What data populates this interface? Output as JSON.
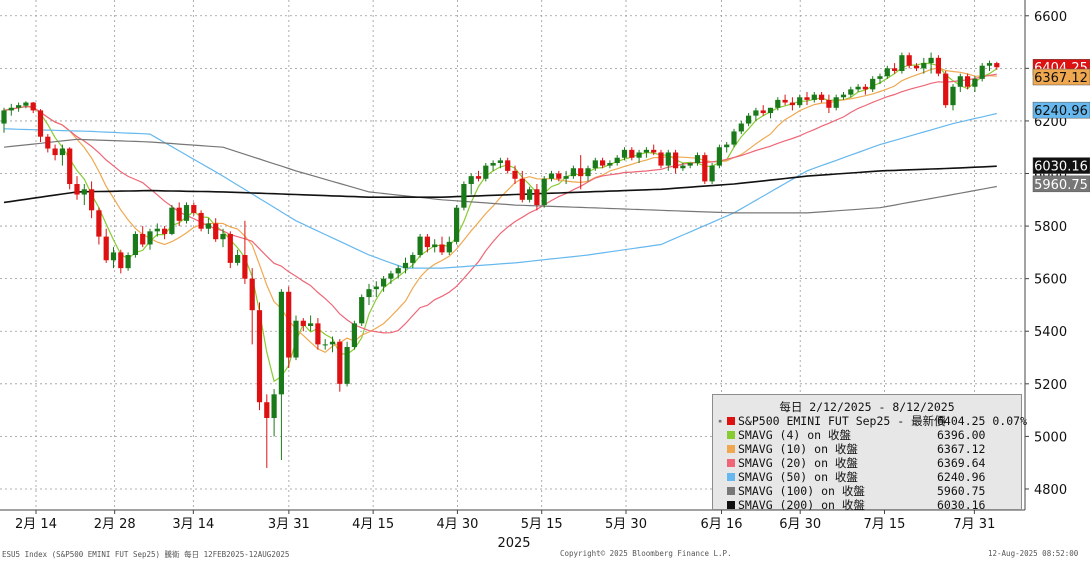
{
  "chart_data": {
    "type": "candlestick",
    "title": "",
    "y_axis": {
      "ticks": [
        4800,
        5000,
        5200,
        5400,
        5600,
        5800,
        6000,
        6200,
        6400,
        6600
      ],
      "range": [
        4720,
        6660
      ],
      "side": "right"
    },
    "x_axis": {
      "ticks": [
        {
          "date": "2025-02-14",
          "label": "2月 14"
        },
        {
          "date": "2025-02-28",
          "label": "2月 28"
        },
        {
          "date": "2025-03-14",
          "label": "3月 14"
        },
        {
          "date": "2025-03-31",
          "label": "3月 31"
        },
        {
          "date": "2025-04-15",
          "label": "4月 15"
        },
        {
          "date": "2025-04-30",
          "label": "4月 30"
        },
        {
          "date": "2025-05-15",
          "label": "5月 15"
        },
        {
          "date": "2025-05-30",
          "label": "5月 30"
        },
        {
          "date": "2025-06-16",
          "label": "6月 16"
        },
        {
          "date": "2025-06-30",
          "label": "6月 30"
        },
        {
          "date": "2025-07-15",
          "label": "7月 15"
        },
        {
          "date": "2025-07-31",
          "label": "7月 31"
        }
      ],
      "year_label": "2025"
    },
    "grid": true,
    "colors": {
      "up": "#1a7a1a",
      "down": "#dd1111"
    },
    "candles": [
      {
        "o": 6190,
        "h": 6250,
        "l": 6155,
        "c": 6240
      },
      {
        "o": 6240,
        "h": 6265,
        "l": 6220,
        "c": 6250
      },
      {
        "o": 6250,
        "h": 6270,
        "l": 6235,
        "c": 6260
      },
      {
        "o": 6258,
        "h": 6275,
        "l": 6248,
        "c": 6270
      },
      {
        "o": 6270,
        "h": 6272,
        "l": 6230,
        "c": 6240
      },
      {
        "o": 6240,
        "h": 6245,
        "l": 6120,
        "c": 6140
      },
      {
        "o": 6140,
        "h": 6150,
        "l": 6080,
        "c": 6095
      },
      {
        "o": 6095,
        "h": 6110,
        "l": 6050,
        "c": 6070
      },
      {
        "o": 6070,
        "h": 6110,
        "l": 6030,
        "c": 6095
      },
      {
        "o": 6095,
        "h": 6100,
        "l": 5940,
        "c": 5960
      },
      {
        "o": 5960,
        "h": 5990,
        "l": 5900,
        "c": 5920
      },
      {
        "o": 5920,
        "h": 5960,
        "l": 5880,
        "c": 5940
      },
      {
        "o": 5940,
        "h": 5970,
        "l": 5830,
        "c": 5860
      },
      {
        "o": 5860,
        "h": 5870,
        "l": 5730,
        "c": 5760
      },
      {
        "o": 5760,
        "h": 5790,
        "l": 5660,
        "c": 5670
      },
      {
        "o": 5670,
        "h": 5720,
        "l": 5640,
        "c": 5700
      },
      {
        "o": 5700,
        "h": 5710,
        "l": 5620,
        "c": 5640
      },
      {
        "o": 5640,
        "h": 5700,
        "l": 5630,
        "c": 5690
      },
      {
        "o": 5690,
        "h": 5780,
        "l": 5680,
        "c": 5770
      },
      {
        "o": 5770,
        "h": 5800,
        "l": 5720,
        "c": 5730
      },
      {
        "o": 5730,
        "h": 5790,
        "l": 5710,
        "c": 5780
      },
      {
        "o": 5780,
        "h": 5810,
        "l": 5760,
        "c": 5790
      },
      {
        "o": 5790,
        "h": 5800,
        "l": 5750,
        "c": 5770
      },
      {
        "o": 5770,
        "h": 5880,
        "l": 5765,
        "c": 5870
      },
      {
        "o": 5870,
        "h": 5890,
        "l": 5800,
        "c": 5820
      },
      {
        "o": 5820,
        "h": 5890,
        "l": 5810,
        "c": 5880
      },
      {
        "o": 5880,
        "h": 5890,
        "l": 5840,
        "c": 5850
      },
      {
        "o": 5850,
        "h": 5860,
        "l": 5780,
        "c": 5790
      },
      {
        "o": 5790,
        "h": 5830,
        "l": 5770,
        "c": 5810
      },
      {
        "o": 5810,
        "h": 5830,
        "l": 5740,
        "c": 5750
      },
      {
        "o": 5750,
        "h": 5790,
        "l": 5720,
        "c": 5770
      },
      {
        "o": 5770,
        "h": 5780,
        "l": 5640,
        "c": 5660
      },
      {
        "o": 5660,
        "h": 5710,
        "l": 5650,
        "c": 5690
      },
      {
        "o": 5690,
        "h": 5820,
        "l": 5580,
        "c": 5600
      },
      {
        "o": 5600,
        "h": 5640,
        "l": 5350,
        "c": 5480
      },
      {
        "o": 5480,
        "h": 5510,
        "l": 5100,
        "c": 5130
      },
      {
        "o": 5130,
        "h": 5160,
        "l": 4880,
        "c": 5070
      },
      {
        "o": 5070,
        "h": 5180,
        "l": 5000,
        "c": 5160
      },
      {
        "o": 5160,
        "h": 5560,
        "l": 4910,
        "c": 5550
      },
      {
        "o": 5550,
        "h": 5570,
        "l": 5260,
        "c": 5300
      },
      {
        "o": 5300,
        "h": 5460,
        "l": 5290,
        "c": 5440
      },
      {
        "o": 5440,
        "h": 5450,
        "l": 5400,
        "c": 5420
      },
      {
        "o": 5420,
        "h": 5460,
        "l": 5400,
        "c": 5430
      },
      {
        "o": 5430,
        "h": 5450,
        "l": 5330,
        "c": 5350
      },
      {
        "o": 5350,
        "h": 5370,
        "l": 5330,
        "c": 5350
      },
      {
        "o": 5350,
        "h": 5380,
        "l": 5320,
        "c": 5360
      },
      {
        "o": 5360,
        "h": 5370,
        "l": 5170,
        "c": 5200
      },
      {
        "o": 5200,
        "h": 5360,
        "l": 5190,
        "c": 5340
      },
      {
        "o": 5340,
        "h": 5440,
        "l": 5330,
        "c": 5430
      },
      {
        "o": 5430,
        "h": 5540,
        "l": 5420,
        "c": 5530
      },
      {
        "o": 5530,
        "h": 5580,
        "l": 5500,
        "c": 5560
      },
      {
        "o": 5560,
        "h": 5590,
        "l": 5530,
        "c": 5570
      },
      {
        "o": 5570,
        "h": 5610,
        "l": 5550,
        "c": 5600
      },
      {
        "o": 5600,
        "h": 5630,
        "l": 5580,
        "c": 5620
      },
      {
        "o": 5620,
        "h": 5650,
        "l": 5600,
        "c": 5640
      },
      {
        "o": 5640,
        "h": 5680,
        "l": 5620,
        "c": 5660
      },
      {
        "o": 5660,
        "h": 5700,
        "l": 5640,
        "c": 5690
      },
      {
        "o": 5690,
        "h": 5770,
        "l": 5680,
        "c": 5760
      },
      {
        "o": 5760,
        "h": 5770,
        "l": 5700,
        "c": 5720
      },
      {
        "o": 5720,
        "h": 5750,
        "l": 5700,
        "c": 5730
      },
      {
        "o": 5730,
        "h": 5760,
        "l": 5690,
        "c": 5700
      },
      {
        "o": 5700,
        "h": 5760,
        "l": 5690,
        "c": 5740
      },
      {
        "o": 5740,
        "h": 5880,
        "l": 5730,
        "c": 5870
      },
      {
        "o": 5870,
        "h": 5970,
        "l": 5860,
        "c": 5960
      },
      {
        "o": 5960,
        "h": 6000,
        "l": 5920,
        "c": 5990
      },
      {
        "o": 5990,
        "h": 6010,
        "l": 5970,
        "c": 5980
      },
      {
        "o": 5980,
        "h": 6040,
        "l": 5970,
        "c": 6030
      },
      {
        "o": 6030,
        "h": 6050,
        "l": 6010,
        "c": 6040
      },
      {
        "o": 6040,
        "h": 6060,
        "l": 6020,
        "c": 6050
      },
      {
        "o": 6050,
        "h": 6060,
        "l": 6000,
        "c": 6010
      },
      {
        "o": 6010,
        "h": 6030,
        "l": 5960,
        "c": 5980
      },
      {
        "o": 5980,
        "h": 6010,
        "l": 5890,
        "c": 5900
      },
      {
        "o": 5900,
        "h": 5950,
        "l": 5890,
        "c": 5940
      },
      {
        "o": 5940,
        "h": 5960,
        "l": 5860,
        "c": 5880
      },
      {
        "o": 5880,
        "h": 5990,
        "l": 5870,
        "c": 5980
      },
      {
        "o": 5980,
        "h": 6010,
        "l": 5970,
        "c": 6000
      },
      {
        "o": 6000,
        "h": 6010,
        "l": 5970,
        "c": 5980
      },
      {
        "o": 5980,
        "h": 6010,
        "l": 5960,
        "c": 5990
      },
      {
        "o": 5990,
        "h": 6030,
        "l": 5980,
        "c": 6020
      },
      {
        "o": 6020,
        "h": 6070,
        "l": 5940,
        "c": 5990
      },
      {
        "o": 5990,
        "h": 6030,
        "l": 5970,
        "c": 6020
      },
      {
        "o": 6020,
        "h": 6060,
        "l": 6010,
        "c": 6050
      },
      {
        "o": 6050,
        "h": 6060,
        "l": 6020,
        "c": 6030
      },
      {
        "o": 6030,
        "h": 6050,
        "l": 6020,
        "c": 6040
      },
      {
        "o": 6040,
        "h": 6070,
        "l": 6030,
        "c": 6060
      },
      {
        "o": 6060,
        "h": 6100,
        "l": 6050,
        "c": 6090
      },
      {
        "o": 6090,
        "h": 6100,
        "l": 6050,
        "c": 6060
      },
      {
        "o": 6060,
        "h": 6090,
        "l": 6040,
        "c": 6080
      },
      {
        "o": 6080,
        "h": 6100,
        "l": 6060,
        "c": 6090
      },
      {
        "o": 6090,
        "h": 6110,
        "l": 6070,
        "c": 6080
      },
      {
        "o": 6080,
        "h": 6090,
        "l": 6020,
        "c": 6030
      },
      {
        "o": 6030,
        "h": 6090,
        "l": 6010,
        "c": 6080
      },
      {
        "o": 6080,
        "h": 6090,
        "l": 6000,
        "c": 6020
      },
      {
        "o": 6020,
        "h": 6040,
        "l": 6010,
        "c": 6030
      },
      {
        "o": 6030,
        "h": 6040,
        "l": 6020,
        "c": 6040
      },
      {
        "o": 6040,
        "h": 6080,
        "l": 6030,
        "c": 6070
      },
      {
        "o": 6070,
        "h": 6080,
        "l": 5960,
        "c": 5970
      },
      {
        "o": 5970,
        "h": 6040,
        "l": 5960,
        "c": 6030
      },
      {
        "o": 6030,
        "h": 6110,
        "l": 6020,
        "c": 6100
      },
      {
        "o": 6100,
        "h": 6120,
        "l": 6080,
        "c": 6110
      },
      {
        "o": 6110,
        "h": 6170,
        "l": 6100,
        "c": 6160
      },
      {
        "o": 6160,
        "h": 6200,
        "l": 6150,
        "c": 6190
      },
      {
        "o": 6190,
        "h": 6230,
        "l": 6180,
        "c": 6220
      },
      {
        "o": 6220,
        "h": 6250,
        "l": 6200,
        "c": 6240
      },
      {
        "o": 6240,
        "h": 6260,
        "l": 6220,
        "c": 6230
      },
      {
        "o": 6230,
        "h": 6250,
        "l": 6210,
        "c": 6250
      },
      {
        "o": 6250,
        "h": 6290,
        "l": 6240,
        "c": 6280
      },
      {
        "o": 6280,
        "h": 6300,
        "l": 6260,
        "c": 6270
      },
      {
        "o": 6270,
        "h": 6290,
        "l": 6240,
        "c": 6260
      },
      {
        "o": 6260,
        "h": 6300,
        "l": 6250,
        "c": 6290
      },
      {
        "o": 6290,
        "h": 6310,
        "l": 6260,
        "c": 6280
      },
      {
        "o": 6280,
        "h": 6310,
        "l": 6270,
        "c": 6300
      },
      {
        "o": 6300,
        "h": 6310,
        "l": 6270,
        "c": 6280
      },
      {
        "o": 6280,
        "h": 6300,
        "l": 6230,
        "c": 6250
      },
      {
        "o": 6250,
        "h": 6300,
        "l": 6240,
        "c": 6290
      },
      {
        "o": 6290,
        "h": 6310,
        "l": 6280,
        "c": 6300
      },
      {
        "o": 6300,
        "h": 6330,
        "l": 6290,
        "c": 6320
      },
      {
        "o": 6320,
        "h": 6340,
        "l": 6310,
        "c": 6330
      },
      {
        "o": 6330,
        "h": 6340,
        "l": 6300,
        "c": 6320
      },
      {
        "o": 6320,
        "h": 6370,
        "l": 6310,
        "c": 6360
      },
      {
        "o": 6360,
        "h": 6380,
        "l": 6340,
        "c": 6370
      },
      {
        "o": 6370,
        "h": 6410,
        "l": 6360,
        "c": 6400
      },
      {
        "o": 6400,
        "h": 6420,
        "l": 6380,
        "c": 6390
      },
      {
        "o": 6390,
        "h": 6460,
        "l": 6380,
        "c": 6450
      },
      {
        "o": 6450,
        "h": 6460,
        "l": 6400,
        "c": 6410
      },
      {
        "o": 6410,
        "h": 6420,
        "l": 6390,
        "c": 6400
      },
      {
        "o": 6400,
        "h": 6440,
        "l": 6380,
        "c": 6420
      },
      {
        "o": 6420,
        "h": 6460,
        "l": 6380,
        "c": 6440
      },
      {
        "o": 6440,
        "h": 6450,
        "l": 6370,
        "c": 6380
      },
      {
        "o": 6380,
        "h": 6390,
        "l": 6250,
        "c": 6260
      },
      {
        "o": 6260,
        "h": 6340,
        "l": 6240,
        "c": 6330
      },
      {
        "o": 6330,
        "h": 6380,
        "l": 6310,
        "c": 6370
      },
      {
        "o": 6370,
        "h": 6380,
        "l": 6320,
        "c": 6330
      },
      {
        "o": 6330,
        "h": 6370,
        "l": 6310,
        "c": 6360
      },
      {
        "o": 6360,
        "h": 6420,
        "l": 6350,
        "c": 6410
      },
      {
        "o": 6410,
        "h": 6430,
        "l": 6390,
        "c": 6420
      },
      {
        "o": 6420,
        "h": 6425,
        "l": 6395,
        "c": 6404.25
      }
    ],
    "series": [
      {
        "name": "SMAVG (4)  on 收盤",
        "color": "#88cc33",
        "type": "sma",
        "period": 4
      },
      {
        "name": "SMAVG (10)  on 收盤",
        "color": "#f0a850",
        "type": "sma",
        "period": 10
      },
      {
        "name": "SMAVG (20)  on 收盤",
        "color": "#ee6677",
        "type": "sma",
        "period": 20
      },
      {
        "name": "SMAVG (50)  on 收盤",
        "color": "#66b8ee",
        "type": "points",
        "values": [
          [
            0,
            6170
          ],
          [
            12,
            6160
          ],
          [
            20,
            6150
          ],
          [
            30,
            5990
          ],
          [
            40,
            5820
          ],
          [
            50,
            5690
          ],
          [
            55,
            5640
          ],
          [
            60,
            5640
          ],
          [
            70,
            5660
          ],
          [
            80,
            5690
          ],
          [
            90,
            5730
          ],
          [
            100,
            5850
          ],
          [
            110,
            6010
          ],
          [
            120,
            6110
          ],
          [
            130,
            6190
          ],
          [
            138,
            6240.96
          ]
        ]
      },
      {
        "name": "SMAVG (100)  on 收盤",
        "color": "#777777",
        "type": "points",
        "values": [
          [
            0,
            6100
          ],
          [
            10,
            6130
          ],
          [
            20,
            6120
          ],
          [
            30,
            6100
          ],
          [
            40,
            6010
          ],
          [
            50,
            5930
          ],
          [
            60,
            5900
          ],
          [
            70,
            5880
          ],
          [
            80,
            5870
          ],
          [
            90,
            5860
          ],
          [
            100,
            5850
          ],
          [
            110,
            5850
          ],
          [
            120,
            5870
          ],
          [
            130,
            5920
          ],
          [
            138,
            5960.75
          ]
        ]
      },
      {
        "name": "SMAVG (200)  on 收盤",
        "color": "#111111",
        "type": "points",
        "values": [
          [
            0,
            5890
          ],
          [
            10,
            5930
          ],
          [
            20,
            5935
          ],
          [
            30,
            5930
          ],
          [
            40,
            5920
          ],
          [
            50,
            5910
          ],
          [
            60,
            5910
          ],
          [
            70,
            5920
          ],
          [
            80,
            5930
          ],
          [
            90,
            5940
          ],
          [
            100,
            5960
          ],
          [
            110,
            5990
          ],
          [
            120,
            6010
          ],
          [
            130,
            6020
          ],
          [
            138,
            6030.16
          ]
        ]
      }
    ],
    "price_tags": [
      {
        "label": "6404.25",
        "value": 6404.25,
        "bg": "#dd1111",
        "fg": "#ffffff"
      },
      {
        "label": "6367.12",
        "value": 6367.12,
        "bg": "#f0a850",
        "fg": "#111111"
      },
      {
        "label": "6240.96",
        "value": 6240.96,
        "bg": "#66b8ee",
        "fg": "#111111"
      },
      {
        "label": "6030.16",
        "value": 6030.16,
        "bg": "#111111",
        "fg": "#ffffff"
      },
      {
        "label": "5960.75",
        "value": 5960.75,
        "bg": "#777777",
        "fg": "#ffffff"
      }
    ]
  },
  "legend": {
    "title": "每日 2/12/2025 - 8/12/2025",
    "rows": [
      {
        "label": "S&P500 EMINI FUT Sep25 - 最新價",
        "value": "6404.25  0.07%",
        "color": "#dd1111",
        "mark": "▪"
      },
      {
        "label": "SMAVG (4)  on 收盤",
        "value": "6396.00",
        "color": "#88cc33",
        "mark": ""
      },
      {
        "label": "SMAVG (10)  on 收盤",
        "value": "6367.12",
        "color": "#f0a850",
        "mark": ""
      },
      {
        "label": "SMAVG (20)  on 收盤",
        "value": "6369.64",
        "color": "#ee6677",
        "mark": ""
      },
      {
        "label": "SMAVG (50)  on 收盤",
        "value": "6240.96",
        "color": "#66b8ee",
        "mark": ""
      },
      {
        "label": "SMAVG (100)  on 收盤",
        "value": "5960.75",
        "color": "#777777",
        "mark": ""
      },
      {
        "label": "SMAVG (200)  on 收盤",
        "value": "6030.16",
        "color": "#111111",
        "mark": ""
      }
    ]
  },
  "footer": {
    "left": "ESU5 Index (S&P500 EMINI FUT  Sep25) 騰衛  每日 12FEB2025-12AUG2025",
    "center": "Copyright© 2025 Bloomberg Finance L.P.",
    "right": "12-Aug-2025 08:52:00"
  }
}
